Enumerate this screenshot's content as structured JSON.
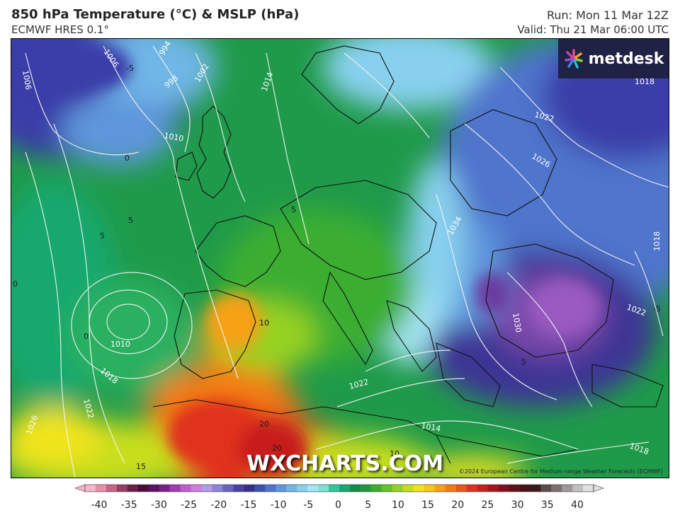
{
  "header": {
    "title": "850 hPa Temperature (°C) & MSLP (hPa)",
    "model": "ECMWF HRES 0.1°",
    "run": "Run: Mon 11 Mar 12Z",
    "valid": "Valid: Thu 21 Mar 06:00 UTC"
  },
  "brand": {
    "name": "metdesk"
  },
  "watermark": "WXCHARTS.COM",
  "copyright": "©2024 European Centre for Medium-range Weather Forecasts (ECMWF)",
  "isobar_labels": [
    "1006",
    "1006",
    "994",
    "998",
    "1002",
    "1010",
    "1014",
    "1010",
    "1018",
    "1022",
    "1026",
    "1022",
    "1026",
    "1034",
    "1030",
    "1022",
    "1018",
    "1018",
    "1014",
    "1018",
    "1022"
  ],
  "temp_labels": [
    "-5",
    "0",
    "5",
    "5",
    "0",
    "0",
    "10",
    "20",
    "20",
    "15",
    "10",
    "5",
    "-5",
    "5"
  ],
  "colorbar": {
    "ticks": [
      "-40",
      "-35",
      "-30",
      "-25",
      "-20",
      "-15",
      "-10",
      "-5",
      "0",
      "5",
      "10",
      "15",
      "20",
      "25",
      "30",
      "35",
      "40"
    ],
    "colors": [
      "#f4b6c8",
      "#e88ea8",
      "#c86484",
      "#9a3d63",
      "#6b1f4a",
      "#4a0d3a",
      "#5a1066",
      "#7a208a",
      "#a23cb2",
      "#c45ad0",
      "#d07ee0",
      "#b49ae8",
      "#8d86d8",
      "#6a62c0",
      "#4a3ea8",
      "#362e8e",
      "#3d4fb0",
      "#4f74cc",
      "#5f96dc",
      "#6fb6e6",
      "#88d0ee",
      "#a6e6f4",
      "#7ee0d4",
      "#32c49a",
      "#17a86e",
      "#128c4a",
      "#1f9a3a",
      "#3aae30",
      "#62c22c",
      "#96d224",
      "#c8de1c",
      "#f2e41a",
      "#f8c614",
      "#f6a012",
      "#f27a12",
      "#ec5418",
      "#e0301e",
      "#c81e1c",
      "#a6141a",
      "#82101a",
      "#621018",
      "#4a1016",
      "#3a1a1a",
      "#5a4a4a",
      "#7e7070",
      "#a09898",
      "#c4c0c0",
      "#e2e0e0"
    ]
  }
}
